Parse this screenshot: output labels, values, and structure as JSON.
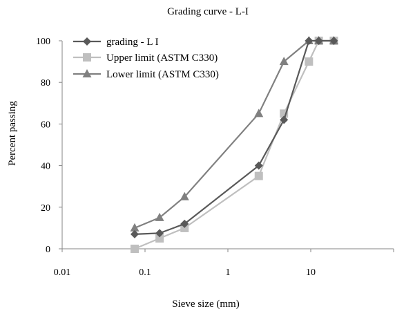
{
  "chart_data": {
    "type": "scatter",
    "title": "Grading curve - L-I",
    "xlabel": "Sieve size (mm)",
    "ylabel": "Percent passing",
    "xscale": "log",
    "xlim": [
      0.01,
      100
    ],
    "ylim": [
      0,
      100
    ],
    "xticks": [
      0.01,
      0.1,
      1,
      10
    ],
    "xtick_labels": [
      "0.01",
      "0.1",
      "1",
      "10"
    ],
    "yticks": [
      0,
      20,
      40,
      60,
      80,
      100
    ],
    "ytick_labels": [
      "0",
      "20",
      "40",
      "60",
      "80",
      "100"
    ],
    "grid": false,
    "legend_position": "top-left",
    "series": [
      {
        "name": "grading - L I",
        "color": "#595959",
        "marker": "diamond",
        "x": [
          0.075,
          0.15,
          0.3,
          2.36,
          4.75,
          9.5,
          12.5,
          19
        ],
        "y": [
          7,
          7.5,
          12,
          40,
          62,
          100,
          100,
          100
        ]
      },
      {
        "name": "Upper limit (ASTM C330)",
        "color": "#bfbfbf",
        "marker": "square",
        "x": [
          0.075,
          0.15,
          0.3,
          2.36,
          4.75,
          9.5,
          12.5,
          19
        ],
        "y": [
          0,
          5,
          10,
          35,
          65,
          90,
          100,
          100
        ]
      },
      {
        "name": "Lower limit (ASTM C330)",
        "color": "#808080",
        "marker": "triangle",
        "x": [
          0.075,
          0.15,
          0.3,
          2.36,
          4.75,
          9.5,
          12.5,
          19
        ],
        "y": [
          10,
          15,
          25,
          65,
          90,
          100,
          100,
          100
        ]
      }
    ]
  }
}
